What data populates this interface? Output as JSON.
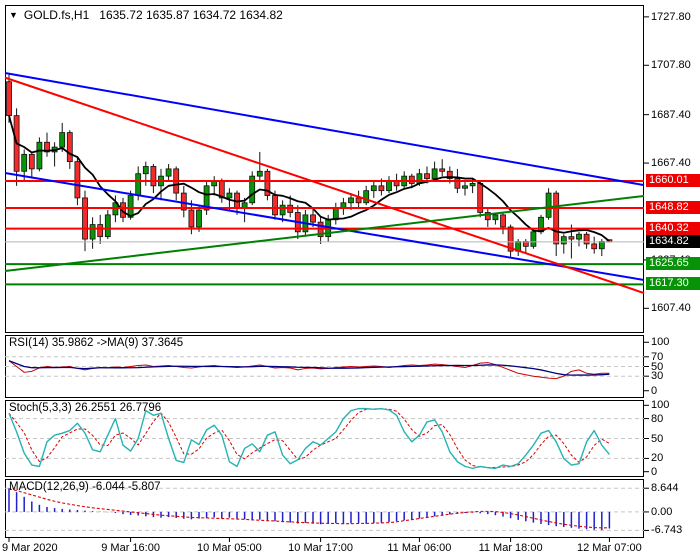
{
  "chart_header": {
    "dropdown_icon": "▼",
    "symbol": "GOLD.fs,H1",
    "ohlc_text": "1635.72 1635.87 1634.72 1634.82"
  },
  "panels": {
    "rsi": {
      "title": "RSI(14) 35.9862  ->MA(9) 37.3645",
      "ticks": [
        "100",
        "70",
        "50",
        "30",
        "0"
      ],
      "tick_values": [
        100,
        70,
        50,
        30,
        0
      ],
      "dashed_levels": [
        70,
        50,
        30
      ]
    },
    "stoch": {
      "title": "Stoch(5,3,3) 26.2551 26.7796",
      "ticks": [
        "100",
        "80",
        "50",
        "20",
        "0"
      ],
      "tick_values": [
        100,
        80,
        50,
        20,
        0
      ],
      "dashed_levels": [
        80,
        50,
        20
      ]
    },
    "macd": {
      "title": "MACD(12,26,9) -6.044 -5.807",
      "ticks": [
        "8.644",
        "0.00",
        "-6.743"
      ],
      "tick_values": [
        8.644,
        0,
        -6.743
      ],
      "dashed_levels": [
        8.644,
        0,
        -6.743
      ]
    }
  },
  "price_scale": {
    "ticks": [
      "1727.80",
      "1707.80",
      "1687.40",
      "1667.40",
      "1627.40",
      "1607.40"
    ],
    "tick_values": [
      1727.8,
      1707.8,
      1687.4,
      1667.4,
      1627.4,
      1607.4
    ],
    "badges": [
      {
        "text": "1660.01",
        "value": 1660.01,
        "bg": "#ee0000",
        "role": "resistance"
      },
      {
        "text": "1648.82",
        "value": 1648.82,
        "bg": "#ee0000",
        "role": "resistance"
      },
      {
        "text": "1640.32",
        "value": 1640.32,
        "bg": "#ee0000",
        "role": "resistance"
      },
      {
        "text": "1634.82",
        "value": 1634.82,
        "bg": "#000000",
        "role": "current-price"
      },
      {
        "text": "1625.65",
        "value": 1625.65,
        "bg": "#079307",
        "role": "support"
      },
      {
        "text": "1617.30",
        "value": 1617.3,
        "bg": "#079307",
        "role": "support"
      }
    ]
  },
  "time_scale": {
    "labels": [
      "9 Mar 2020",
      "9 Mar 16:00",
      "10 Mar 05:00",
      "10 Mar 17:00",
      "11 Mar 06:00",
      "11 Mar 18:00",
      "12 Mar 07:00"
    ],
    "candle_indices": [
      0,
      16,
      29,
      41,
      54,
      66,
      79
    ]
  },
  "chart_data": {
    "type": "candlestick-with-indicators",
    "symbol": "GOLD.fs",
    "timeframe": "H1",
    "title": "GOLD.fs,H1 1635.72 1635.87 1634.72 1634.82",
    "y_range_main": [
      1597.2,
      1732.7
    ],
    "candles_ohlc": [
      [
        1701,
        1704,
        1684,
        1687
      ],
      [
        1687,
        1690,
        1658,
        1664
      ],
      [
        1664,
        1673,
        1660,
        1671
      ],
      [
        1671,
        1672,
        1661,
        1665
      ],
      [
        1665,
        1678,
        1664,
        1676
      ],
      [
        1676,
        1680,
        1670,
        1672
      ],
      [
        1672,
        1676,
        1666,
        1674
      ],
      [
        1674,
        1684,
        1672,
        1680
      ],
      [
        1680,
        1681,
        1665,
        1668
      ],
      [
        1668,
        1670,
        1650,
        1653
      ],
      [
        1653,
        1656,
        1631,
        1636
      ],
      [
        1636,
        1645,
        1632,
        1642
      ],
      [
        1642,
        1646,
        1634,
        1637
      ],
      [
        1637,
        1648,
        1636,
        1646
      ],
      [
        1646,
        1654,
        1643,
        1651
      ],
      [
        1651,
        1653,
        1643,
        1645
      ],
      [
        1645,
        1656,
        1644,
        1654
      ],
      [
        1654,
        1666,
        1652,
        1663
      ],
      [
        1663,
        1668,
        1658,
        1666
      ],
      [
        1666,
        1667,
        1655,
        1658
      ],
      [
        1658,
        1665,
        1652,
        1662
      ],
      [
        1662,
        1667,
        1660,
        1665
      ],
      [
        1665,
        1666,
        1652,
        1655
      ],
      [
        1655,
        1658,
        1645,
        1648
      ],
      [
        1648,
        1652,
        1638,
        1641
      ],
      [
        1641,
        1650,
        1639,
        1648
      ],
      [
        1648,
        1660,
        1646,
        1658
      ],
      [
        1658,
        1662,
        1654,
        1660
      ],
      [
        1660,
        1661,
        1651,
        1653
      ],
      [
        1653,
        1657,
        1648,
        1655
      ],
      [
        1655,
        1656,
        1646,
        1649
      ],
      [
        1649,
        1653,
        1643,
        1651
      ],
      [
        1651,
        1664,
        1650,
        1662
      ],
      [
        1662,
        1672,
        1660,
        1664
      ],
      [
        1664,
        1665,
        1652,
        1654
      ],
      [
        1654,
        1656,
        1644,
        1646
      ],
      [
        1646,
        1652,
        1643,
        1650
      ],
      [
        1650,
        1654,
        1645,
        1647
      ],
      [
        1647,
        1650,
        1636,
        1639
      ],
      [
        1639,
        1648,
        1637,
        1646
      ],
      [
        1646,
        1649,
        1641,
        1643
      ],
      [
        1643,
        1645,
        1634,
        1637
      ],
      [
        1637,
        1646,
        1635,
        1644
      ],
      [
        1644,
        1651,
        1642,
        1649
      ],
      [
        1649,
        1653,
        1646,
        1651
      ],
      [
        1651,
        1655,
        1648,
        1653
      ],
      [
        1653,
        1656,
        1649,
        1651
      ],
      [
        1651,
        1658,
        1650,
        1656
      ],
      [
        1656,
        1660,
        1653,
        1658
      ],
      [
        1658,
        1661,
        1654,
        1656
      ],
      [
        1656,
        1662,
        1655,
        1660
      ],
      [
        1660,
        1663,
        1656,
        1658
      ],
      [
        1658,
        1664,
        1657,
        1662
      ],
      [
        1662,
        1663,
        1657,
        1659
      ],
      [
        1659,
        1665,
        1658,
        1663
      ],
      [
        1663,
        1666,
        1659,
        1661
      ],
      [
        1661,
        1668,
        1660,
        1665
      ],
      [
        1665,
        1669,
        1662,
        1664
      ],
      [
        1664,
        1666,
        1659,
        1661
      ],
      [
        1661,
        1665,
        1655,
        1657
      ],
      [
        1657,
        1660,
        1654,
        1658
      ],
      [
        1658,
        1661,
        1655,
        1659
      ],
      [
        1659,
        1660,
        1645,
        1647
      ],
      [
        1647,
        1649,
        1641,
        1644
      ],
      [
        1644,
        1647,
        1642,
        1646
      ],
      [
        1646,
        1647,
        1638,
        1641
      ],
      [
        1641,
        1642,
        1628,
        1631
      ],
      [
        1631,
        1636,
        1629,
        1635
      ],
      [
        1635,
        1636,
        1630,
        1633
      ],
      [
        1633,
        1640,
        1632,
        1639
      ],
      [
        1639,
        1646,
        1638,
        1645
      ],
      [
        1645,
        1657,
        1644,
        1655
      ],
      [
        1655,
        1656,
        1629,
        1634
      ],
      [
        1634,
        1638,
        1630,
        1637
      ],
      [
        1637,
        1642,
        1628,
        1636
      ],
      [
        1636,
        1639,
        1633,
        1638
      ],
      [
        1638,
        1639,
        1632,
        1634
      ],
      [
        1634,
        1637,
        1630,
        1632
      ],
      [
        1632,
        1636,
        1629,
        1635
      ],
      [
        1635.72,
        1635.87,
        1634.72,
        1634.82
      ]
    ],
    "levels": {
      "resistance": [
        1660.01,
        1648.82,
        1640.32
      ],
      "support": [
        1625.65,
        1617.3
      ],
      "current_price": 1634.82
    },
    "trendlines": [
      {
        "name": "blue-upper-channel",
        "color": "#0000ff",
        "price_start": 1704.6,
        "price_end": 1658.3
      },
      {
        "name": "blue-lower-channel",
        "color": "#0000ff",
        "price_start": 1663.3,
        "price_end": 1619.1
      },
      {
        "name": "red-downtrend-line",
        "color": "#ff0000",
        "price_start": 1702.7,
        "price_end": 1613.7
      },
      {
        "name": "green-uptrend-line",
        "color": "#008000",
        "price_start": 1622.8,
        "price_end": 1653.8
      }
    ],
    "indicators": {
      "rsi": {
        "current": 35.9862,
        "ma_current": 37.3645,
        "values": [
          62,
          50,
          38,
          40,
          47,
          50,
          48,
          49,
          50,
          46,
          43,
          46,
          48,
          47,
          49,
          48,
          50,
          52,
          53,
          50,
          51,
          52,
          50,
          48,
          47,
          49,
          51,
          52,
          50,
          49,
          48,
          49,
          51,
          53,
          50,
          47,
          48,
          47,
          43,
          46,
          47,
          45,
          46,
          48,
          49,
          50,
          49,
          50,
          51,
          50,
          48,
          50,
          52,
          53,
          52,
          53,
          55,
          54,
          52,
          50,
          48,
          52,
          57,
          58,
          54,
          48,
          42,
          36,
          33,
          30,
          28,
          26,
          25,
          30,
          40,
          43,
          36,
          34,
          36,
          36
        ]
      },
      "stoch": {
        "current": 26.2551,
        "signal_current": 26.7796,
        "values": [
          88,
          60,
          28,
          10,
          8,
          45,
          55,
          58,
          62,
          73,
          58,
          33,
          30,
          55,
          80,
          40,
          31,
          50,
          92,
          85,
          88,
          50,
          17,
          14,
          48,
          41,
          63,
          70,
          55,
          15,
          8,
          35,
          42,
          30,
          55,
          60,
          25,
          12,
          18,
          35,
          45,
          40,
          50,
          60,
          80,
          92,
          95,
          95,
          94,
          95,
          93,
          85,
          60,
          45,
          55,
          75,
          78,
          60,
          30,
          15,
          8,
          5,
          8,
          6,
          5,
          10,
          8,
          12,
          25,
          40,
          58,
          62,
          45,
          20,
          10,
          12,
          45,
          62,
          40,
          26
        ]
      },
      "macd": {
        "current": -6.044,
        "signal_current": -5.807,
        "histogram": [
          8.6,
          7.2,
          5.5,
          3.8,
          2.6,
          1.8,
          1.4,
          1.1,
          0.9,
          0.7,
          0.5,
          0.3,
          0.1,
          -0.1,
          -0.4,
          -0.8,
          -1.1,
          -1.3,
          -1.6,
          -1.9,
          -2.1,
          -1.9,
          -2.2,
          -2.5,
          -2.7,
          -2.4,
          -2.2,
          -2.0,
          -2.3,
          -2.1,
          -2.4,
          -2.7,
          -3.0,
          -2.8,
          -3.1,
          -3.4,
          -3.7,
          -3.9,
          -4.2,
          -4.0,
          -4.3,
          -4.5,
          -4.3,
          -4.1,
          -4.4,
          -4.2,
          -4.0,
          -4.3,
          -4.1,
          -3.9,
          -3.7,
          -3.4,
          -3.1,
          -2.8,
          -2.4,
          -2.0,
          -1.6,
          -1.2,
          -0.9,
          -0.6,
          -0.4,
          -0.3,
          -0.5,
          -0.8,
          -1.2,
          -1.7,
          -2.3,
          -2.9,
          -3.4,
          -3.9,
          -4.4,
          -4.8,
          -5.2,
          -5.5,
          -5.8,
          -6.1,
          -6.3,
          -6.5,
          -6.6,
          -6.044
        ],
        "signal": [
          8.4,
          7.8,
          7.0,
          6.2,
          5.4,
          4.6,
          3.9,
          3.3,
          2.8,
          2.3,
          1.9,
          1.5,
          1.2,
          0.9,
          0.6,
          0.3,
          0.0,
          -0.3,
          -0.6,
          -0.9,
          -1.2,
          -1.4,
          -1.6,
          -1.8,
          -2.0,
          -2.1,
          -2.2,
          -2.3,
          -2.4,
          -2.5,
          -2.6,
          -2.7,
          -2.9,
          -3.0,
          -3.2,
          -3.3,
          -3.5,
          -3.6,
          -3.8,
          -3.9,
          -4.0,
          -4.1,
          -4.2,
          -4.2,
          -4.3,
          -4.3,
          -4.2,
          -4.2,
          -4.1,
          -4.0,
          -3.9,
          -3.6,
          -3.2,
          -2.8,
          -2.4,
          -2.0,
          -1.6,
          -1.2,
          -0.8,
          -0.5,
          -0.2,
          0.0,
          0.2,
          0.2,
          0.1,
          -0.2,
          -0.6,
          -1.1,
          -1.7,
          -2.3,
          -2.9,
          -3.5,
          -4.0,
          -4.5,
          -4.9,
          -5.2,
          -5.5,
          -5.7,
          -5.8,
          -5.807
        ]
      }
    },
    "colors": {
      "up_candle": "#089608",
      "down_candle": "#f22b2b",
      "candle_outline": "#111111",
      "ma_line": "#000000",
      "current_price_line": "#b4b4b4",
      "level_red": "#ff0000",
      "level_green": "#008000",
      "rsi_line": "#cc0000",
      "rsi_ma": "#000080",
      "stoch_main": "#26b3b3",
      "stoch_signal": "#dd0000",
      "macd_hist": "#2020cc",
      "macd_signal": "#dd0000",
      "grid_dash": "#c6c6c6",
      "border": "#000000"
    }
  }
}
